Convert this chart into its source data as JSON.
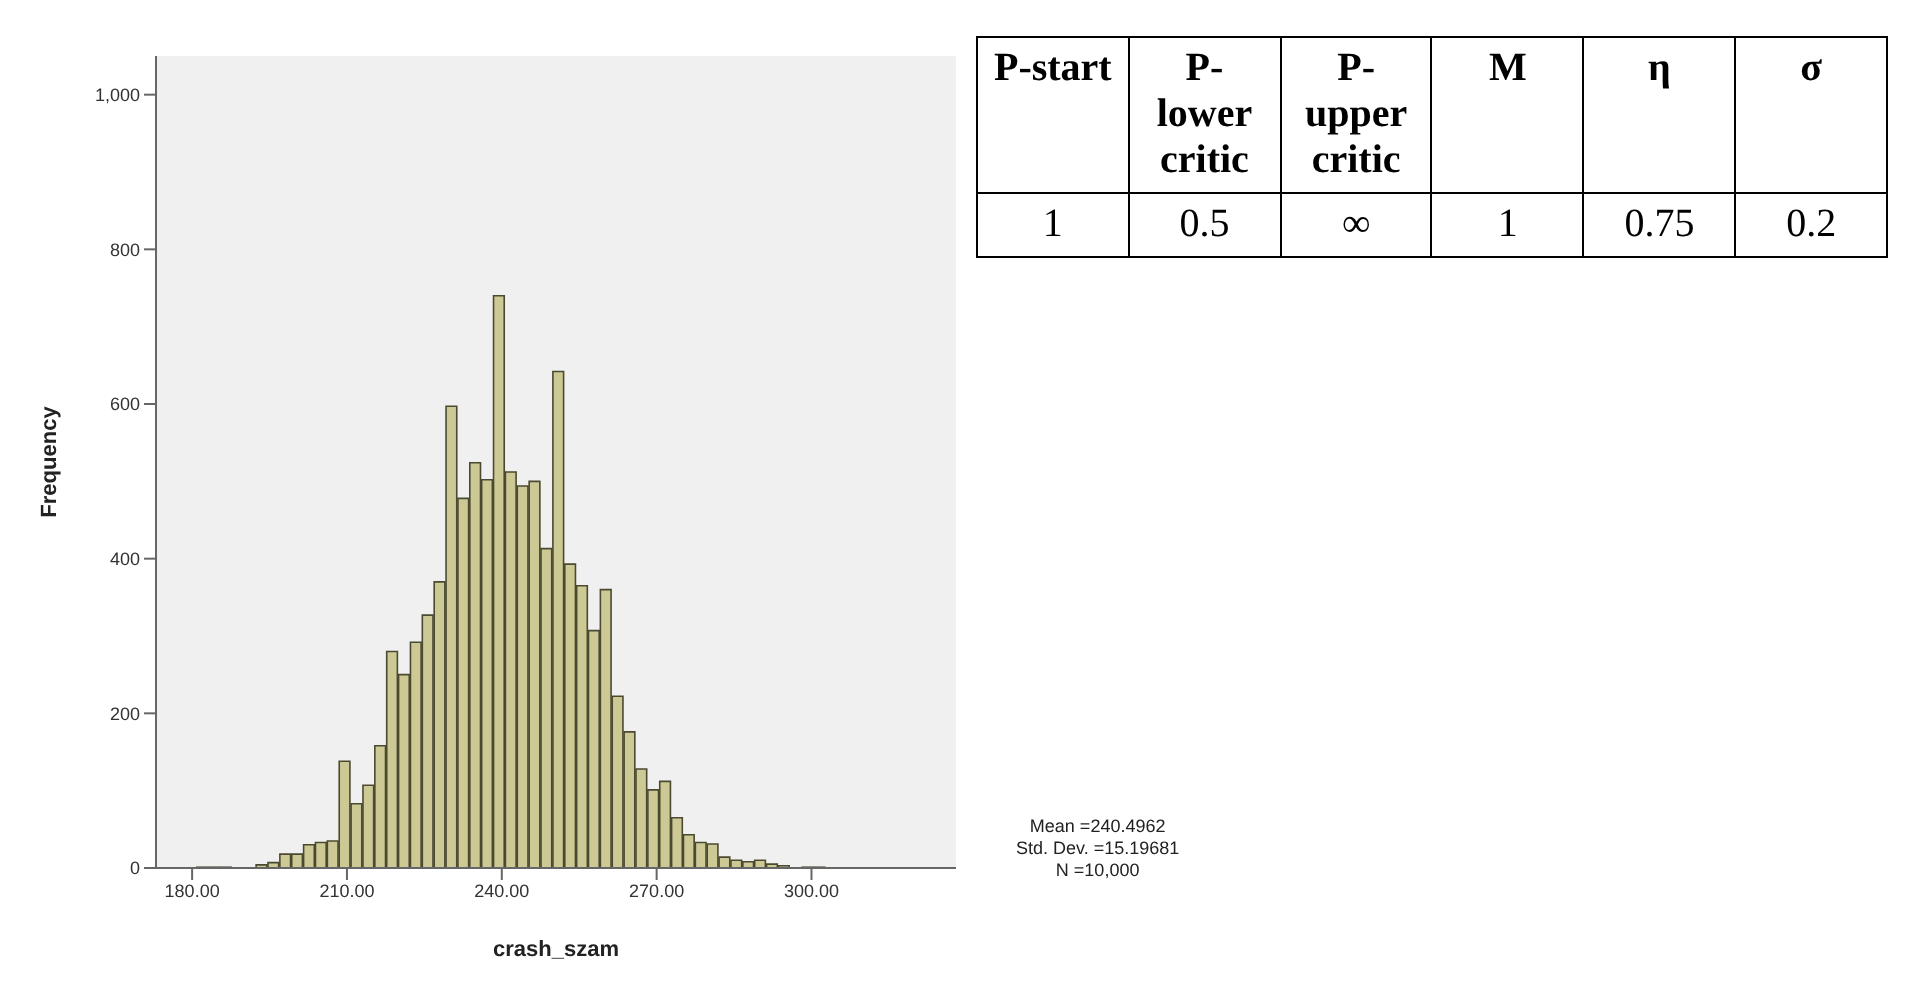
{
  "chart_data": {
    "type": "histogram",
    "xlabel": "crash_szam",
    "ylabel": "Frequency",
    "color": "#cdc995",
    "bins": [
      180.9,
      183.2,
      185.5,
      187.8,
      190.1,
      192.4,
      194.7,
      197.0,
      199.3,
      201.6,
      203.9,
      206.2,
      208.5,
      210.8,
      213.1,
      215.4,
      217.7,
      220.0,
      222.3,
      224.6,
      226.9,
      229.2,
      231.5,
      233.8,
      236.1,
      238.4,
      240.7,
      243.0,
      245.3,
      247.6,
      249.9,
      252.2,
      254.5,
      256.8,
      259.1,
      261.4,
      263.7,
      266.0,
      268.3,
      270.6,
      272.9,
      275.2,
      277.5,
      279.8,
      282.1,
      284.4,
      286.7,
      289.0,
      291.3,
      293.6,
      295.9,
      298.2,
      300.5,
      302.8
    ],
    "values": [
      1,
      1,
      1,
      null,
      null,
      4,
      7,
      18,
      18,
      30,
      33,
      35,
      138,
      83,
      107,
      158,
      280,
      250,
      292,
      327,
      370,
      597,
      478,
      524,
      502,
      740,
      512,
      494,
      500,
      413,
      642,
      393,
      365,
      307,
      360,
      222,
      176,
      128,
      101,
      112,
      65,
      43,
      33,
      31,
      14,
      10,
      8,
      10,
      5,
      3,
      null,
      1,
      1
    ],
    "xlim": [
      173,
      328
    ],
    "xticks": [
      {
        "value": 180,
        "label": "180.00"
      },
      {
        "value": 210,
        "label": "210.00"
      },
      {
        "value": 240,
        "label": "240.00"
      },
      {
        "value": 270,
        "label": "270.00"
      },
      {
        "value": 300,
        "label": "300.00"
      }
    ],
    "ylim": [
      0,
      1050
    ],
    "yticks": [
      0,
      200,
      400,
      600,
      800,
      {
        "value": 1000,
        "label": "1,000"
      }
    ],
    "annotations": [
      "P-start",
      "P-lower critic",
      "P-upper critic",
      "M",
      "η",
      "σ",
      "1",
      "0.5",
      "∞",
      "1",
      "0.75",
      "0.2",
      "Mean =240.4962",
      "Std. Dev. =15.19681",
      "N =10,000"
    ]
  }
}
